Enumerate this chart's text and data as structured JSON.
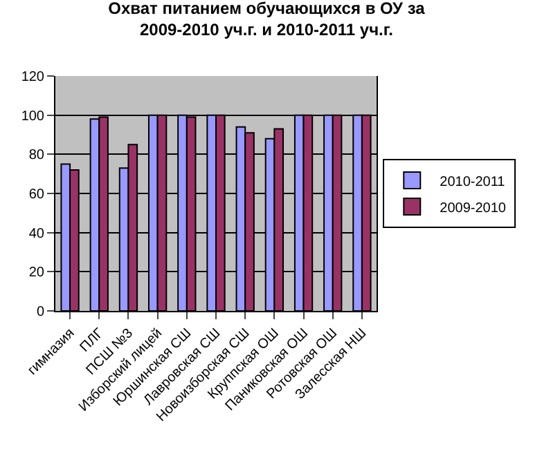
{
  "chart_data": {
    "type": "bar",
    "title": "Охват питанием обучающихся в ОУ за\n2009-2010 уч.г. и 2010-2011 уч.г.",
    "categories": [
      "гимназия",
      "ПЛГ",
      "ПСШ №3",
      "Изборский лицей",
      "Юршинская СШ",
      "Лавровская СШ",
      "Новоизборская СШ",
      "Круппская ОШ",
      "Паниковская ОШ",
      "Ротовская ОШ",
      "Залесская НШ"
    ],
    "series": [
      {
        "name": "2010-2011",
        "color": "#9999ff",
        "values": [
          75,
          98,
          73,
          100,
          100,
          100,
          94,
          88,
          100,
          100,
          100
        ]
      },
      {
        "name": "2009-2010",
        "color": "#993366",
        "values": [
          72,
          99,
          85,
          100,
          99,
          100,
          91,
          93,
          100,
          100,
          100
        ]
      }
    ],
    "ylim": [
      0,
      120
    ],
    "yticks": [
      0,
      20,
      40,
      60,
      80,
      100,
      120
    ],
    "grid": "y",
    "legend": "right"
  }
}
